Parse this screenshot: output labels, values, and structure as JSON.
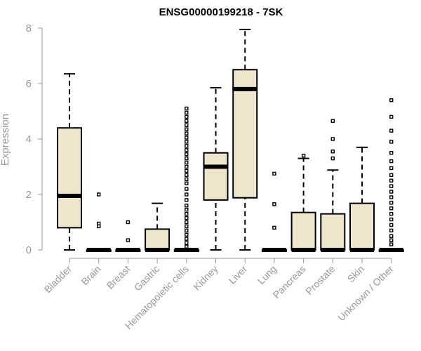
{
  "chart_data": {
    "type": "boxplot",
    "title": "ENSG00000199218 - 7SK",
    "ylabel": "Expression",
    "ylim": [
      0,
      8
    ],
    "yticks": [
      0,
      2,
      4,
      6,
      8
    ],
    "box_fill": "#ede6cc",
    "axis_color": "#999999",
    "categories": [
      "Bladder",
      "Brain",
      "Breast",
      "Gastric",
      "Hematopoietic cells",
      "Kidney",
      "Liver",
      "Lung",
      "Pancreas",
      "Prostate",
      "Skin",
      "Unknown / Other"
    ],
    "boxes": [
      {
        "min": 0,
        "q1": 0.8,
        "median": 1.95,
        "q3": 4.4,
        "max": 6.35,
        "outliers": []
      },
      {
        "min": 0,
        "q1": 0,
        "median": 0,
        "q3": 0,
        "max": 0,
        "outliers": [
          2.0,
          0.95,
          0.85
        ]
      },
      {
        "min": 0,
        "q1": 0,
        "median": 0,
        "q3": 0,
        "max": 0,
        "outliers": [
          1.0,
          0.35
        ]
      },
      {
        "min": 0,
        "q1": 0,
        "median": 0,
        "q3": 0.75,
        "max": 1.68,
        "outliers": []
      },
      {
        "min": 0,
        "q1": 0,
        "median": 0,
        "q3": 0,
        "max": 0,
        "outliers": [
          5.1,
          4.95,
          4.8,
          4.65,
          4.5,
          4.35,
          4.2,
          4.05,
          3.9,
          3.75,
          3.6,
          3.45,
          3.3,
          3.15,
          3.0,
          2.85,
          2.7,
          2.55,
          2.4,
          2.2,
          2.0,
          1.8,
          1.6,
          1.45,
          1.3,
          1.15,
          1.0,
          0.85,
          0.7,
          0.55,
          0.4,
          0.25,
          0.12
        ]
      },
      {
        "min": 0,
        "q1": 1.8,
        "median": 3.0,
        "q3": 3.5,
        "max": 5.85,
        "outliers": []
      },
      {
        "min": 0,
        "q1": 1.88,
        "median": 5.8,
        "q3": 6.5,
        "max": 7.95,
        "outliers": []
      },
      {
        "min": 0,
        "q1": 0,
        "median": 0,
        "q3": 0,
        "max": 0,
        "outliers": [
          2.75,
          1.65,
          0.8
        ]
      },
      {
        "min": 0,
        "q1": 0,
        "median": 0,
        "q3": 1.35,
        "max": 3.3,
        "outliers": [
          3.4
        ]
      },
      {
        "min": 0,
        "q1": 0,
        "median": 0,
        "q3": 1.3,
        "max": 2.88,
        "outliers": [
          4.65,
          4.0,
          3.55,
          3.3
        ]
      },
      {
        "min": 0,
        "q1": 0,
        "median": 0,
        "q3": 1.68,
        "max": 3.7,
        "outliers": []
      },
      {
        "min": 0,
        "q1": 0,
        "median": 0,
        "q3": 0,
        "max": 0,
        "outliers": [
          5.4,
          4.8,
          4.3,
          3.9,
          3.5,
          3.2,
          2.95,
          2.7,
          2.5,
          2.3,
          2.1,
          1.9,
          1.7,
          1.5,
          1.3,
          1.1,
          0.9,
          0.7,
          0.5,
          0.35,
          0.2
        ]
      }
    ]
  }
}
